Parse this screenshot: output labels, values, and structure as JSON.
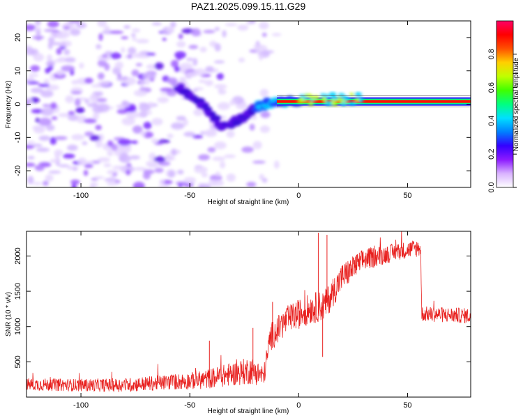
{
  "title": "PAZ1.2025.099.15.11.G29",
  "chart_data": [
    {
      "type": "heatmap",
      "xlabel": "Height of straight line (km)",
      "ylabel": "Frequency (Hz)",
      "xlim": [
        -125,
        79
      ],
      "ylim": [
        -25,
        25
      ],
      "xticks": [
        -100,
        -50,
        0,
        50
      ],
      "yticks": [
        -20,
        -10,
        0,
        10,
        20
      ],
      "colorbar": {
        "label": "Normalized spectral amplitude",
        "range": [
          0,
          1
        ],
        "ticks": [
          "0.0",
          "0.2",
          "0.4",
          "0.6",
          "0.8"
        ],
        "colors": [
          "#ffffff",
          "#d9b3ff",
          "#8c1aff",
          "#3300ff",
          "#0080ff",
          "#00e0ff",
          "#00ff80",
          "#40ff00",
          "#c0ff00",
          "#ffd000",
          "#ff5000",
          "#ff0000",
          "#ff0066"
        ]
      },
      "ridge": [
        {
          "x": -55,
          "f": 5.0
        },
        {
          "x": -50,
          "f": 3.0
        },
        {
          "x": -45,
          "f": 0.5
        },
        {
          "x": -40,
          "f": -3.5
        },
        {
          "x": -35,
          "f": -7.0
        },
        {
          "x": -30,
          "f": -5.5
        },
        {
          "x": -25,
          "f": -4.0
        },
        {
          "x": -20,
          "f": -1.0
        },
        {
          "x": -15,
          "f": 0.0
        },
        {
          "x": -10,
          "f": 0.5
        },
        {
          "x": 0,
          "f": 0.8
        },
        {
          "x": 79,
          "f": 0.8
        }
      ]
    },
    {
      "type": "line",
      "xlabel": "Height of straight line (km)",
      "ylabel": "SNR (10 * v/v)",
      "xlim": [
        -125,
        79
      ],
      "ylim": [
        0,
        2350
      ],
      "xticks": [
        -100,
        -50,
        0,
        50
      ],
      "yticks": [
        500,
        1000,
        1500,
        2000
      ],
      "color": "#e8201e",
      "series_envelope": [
        {
          "x": -125,
          "mean": 180,
          "spread": 90
        },
        {
          "x": -100,
          "mean": 170,
          "spread": 90
        },
        {
          "x": -80,
          "mean": 170,
          "spread": 100
        },
        {
          "x": -60,
          "mean": 210,
          "spread": 110
        },
        {
          "x": -45,
          "mean": 240,
          "spread": 130
        },
        {
          "x": -38,
          "mean": 280,
          "spread": 150
        },
        {
          "x": -30,
          "mean": 330,
          "spread": 170
        },
        {
          "x": -22,
          "mean": 380,
          "spread": 200
        },
        {
          "x": -16,
          "mean": 300,
          "spread": 150
        },
        {
          "x": -13,
          "mean": 850,
          "spread": 200
        },
        {
          "x": -5,
          "mean": 1100,
          "spread": 200
        },
        {
          "x": 5,
          "mean": 1250,
          "spread": 220
        },
        {
          "x": 12,
          "mean": 1300,
          "spread": 220
        },
        {
          "x": 20,
          "mean": 1700,
          "spread": 200
        },
        {
          "x": 30,
          "mean": 1950,
          "spread": 160
        },
        {
          "x": 45,
          "mean": 2060,
          "spread": 120
        },
        {
          "x": 56,
          "mean": 2120,
          "spread": 130
        },
        {
          "x": 56.5,
          "mean": 1180,
          "spread": 110
        },
        {
          "x": 79,
          "mean": 1150,
          "spread": 110
        }
      ],
      "spikes": [
        {
          "x": -41,
          "y": 800
        },
        {
          "x": -21,
          "y": 980
        },
        {
          "x": 9,
          "y": 2330
        },
        {
          "x": 11,
          "y": 570
        },
        {
          "x": 13,
          "y": 2300
        },
        {
          "x": -12,
          "y": 1350
        }
      ]
    }
  ]
}
